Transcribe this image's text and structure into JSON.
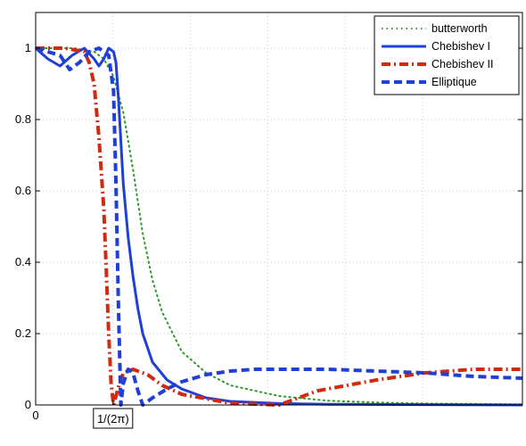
{
  "chart_data": {
    "type": "line",
    "xlim": [
      0,
      1
    ],
    "ylim": [
      0,
      1.1
    ],
    "grid": true,
    "grid_style": "dotted",
    "legend_position": "top-right",
    "x_ticks": [
      {
        "value": 0,
        "label": "0"
      },
      {
        "value": 0.159,
        "label": "1/(2π)",
        "boxed": true
      }
    ],
    "x_gridlines": [
      0.159,
      0.318,
      0.477,
      0.636,
      0.795
    ],
    "y_ticks": [
      {
        "value": 0,
        "label": "0"
      },
      {
        "value": 0.2,
        "label": "0.2"
      },
      {
        "value": 0.4,
        "label": "0.4"
      },
      {
        "value": 0.6,
        "label": "0.6"
      },
      {
        "value": 0.8,
        "label": "0.8"
      },
      {
        "value": 1.0,
        "label": "1"
      }
    ],
    "series": [
      {
        "name": "butterworth",
        "color": "#2e9a2e",
        "dash": "dotted",
        "x": [
          0,
          0.08,
          0.12,
          0.14,
          0.16,
          0.18,
          0.2,
          0.22,
          0.24,
          0.26,
          0.3,
          0.35,
          0.4,
          0.5,
          0.6,
          0.7,
          0.8,
          0.9,
          1.0
        ],
        "y": [
          1.0,
          1.0,
          0.99,
          0.97,
          0.92,
          0.82,
          0.66,
          0.48,
          0.35,
          0.26,
          0.15,
          0.09,
          0.055,
          0.025,
          0.012,
          0.007,
          0.004,
          0.003,
          0.002
        ]
      },
      {
        "name": "Chebishev I",
        "color": "#1f3fd6",
        "dash": "solid",
        "x": [
          0,
          0.025,
          0.05,
          0.075,
          0.1,
          0.12,
          0.13,
          0.14,
          0.15,
          0.16,
          0.165,
          0.17,
          0.175,
          0.18,
          0.19,
          0.2,
          0.21,
          0.22,
          0.24,
          0.27,
          0.3,
          0.35,
          0.4,
          0.5,
          0.6,
          0.8,
          1.0
        ],
        "y": [
          1.0,
          0.97,
          0.95,
          0.98,
          1.0,
          0.97,
          0.95,
          0.97,
          1.0,
          0.99,
          0.96,
          0.86,
          0.74,
          0.62,
          0.47,
          0.36,
          0.27,
          0.2,
          0.12,
          0.07,
          0.045,
          0.02,
          0.01,
          0.004,
          0.002,
          0.001,
          0.0
        ]
      },
      {
        "name": "Chebishev II",
        "color": "#d02a10",
        "dash": "dashdot",
        "x": [
          0,
          0.06,
          0.1,
          0.11,
          0.12,
          0.13,
          0.14,
          0.145,
          0.15,
          0.155,
          0.16,
          0.17,
          0.18,
          0.2,
          0.23,
          0.26,
          0.3,
          0.4,
          0.5,
          0.54,
          0.58,
          0.7,
          0.8,
          0.9,
          1.0
        ],
        "y": [
          1.0,
          1.0,
          0.99,
          0.96,
          0.9,
          0.75,
          0.55,
          0.38,
          0.2,
          0.06,
          0.0,
          0.05,
          0.09,
          0.1,
          0.085,
          0.055,
          0.03,
          0.005,
          0.0,
          0.02,
          0.04,
          0.07,
          0.09,
          0.1,
          0.1
        ]
      },
      {
        "name": "Elliptique",
        "color": "#1f3fd6",
        "dash": "dashed",
        "x": [
          0,
          0.05,
          0.07,
          0.09,
          0.11,
          0.13,
          0.15,
          0.16,
          0.165,
          0.17,
          0.175,
          0.18,
          0.19,
          0.2,
          0.21,
          0.22,
          0.24,
          0.27,
          0.3,
          0.35,
          0.4,
          0.45,
          0.5,
          0.6,
          0.7,
          0.8,
          0.9,
          1.0
        ],
        "y": [
          1.0,
          0.98,
          0.94,
          0.96,
          0.99,
          1.0,
          0.98,
          0.88,
          0.62,
          0.28,
          0.0,
          0.06,
          0.1,
          0.09,
          0.04,
          0.0,
          0.02,
          0.045,
          0.065,
          0.085,
          0.095,
          0.1,
          0.1,
          0.1,
          0.095,
          0.09,
          0.08,
          0.075
        ]
      }
    ]
  }
}
